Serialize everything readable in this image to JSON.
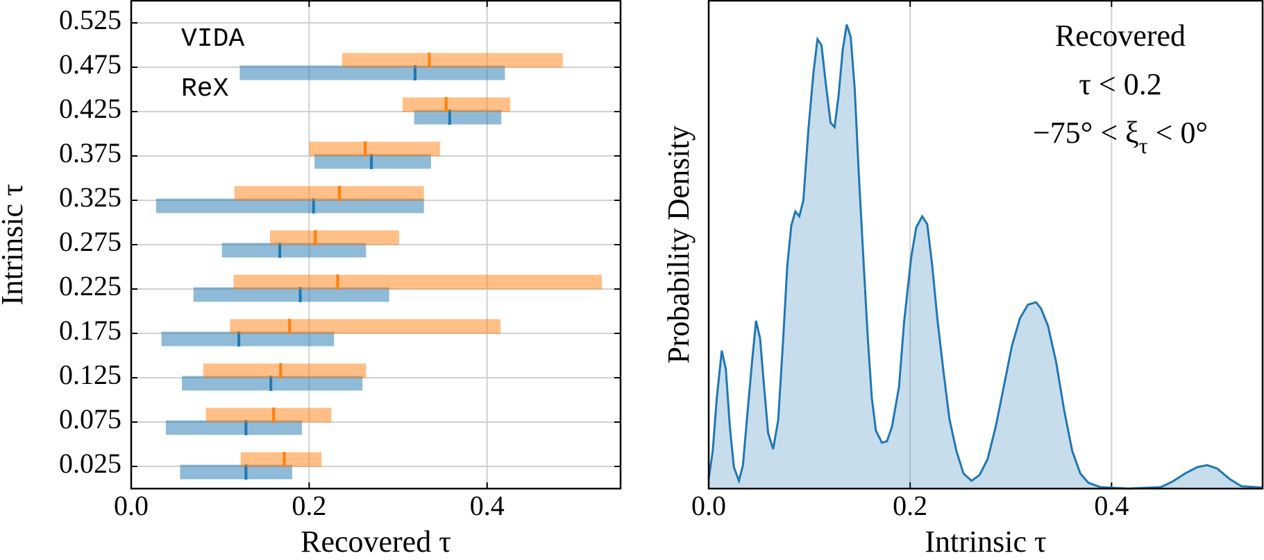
{
  "chart_data": [
    {
      "type": "range",
      "xlabel": "Recovered τ",
      "ylabel": "Intrinsic τ",
      "y": [
        0.025,
        0.075,
        0.125,
        0.175,
        0.225,
        0.275,
        0.325,
        0.375,
        0.425,
        0.475
      ],
      "series": [
        {
          "name": "VIDA",
          "color": "#1f77b4",
          "low": [
            0.055,
            0.039,
            0.057,
            0.034,
            0.07,
            0.102,
            0.028,
            0.206,
            0.318,
            0.122
          ],
          "high": [
            0.181,
            0.192,
            0.26,
            0.228,
            0.29,
            0.264,
            0.329,
            0.337,
            0.416,
            0.42
          ],
          "median": [
            0.129,
            0.129,
            0.157,
            0.121,
            0.19,
            0.167,
            0.205,
            0.27,
            0.358,
            0.319
          ]
        },
        {
          "name": "ReX",
          "color": "#ff7f0e",
          "low": [
            0.123,
            0.084,
            0.081,
            0.111,
            0.115,
            0.156,
            0.116,
            0.2,
            0.305,
            0.237
          ],
          "high": [
            0.214,
            0.225,
            0.264,
            0.415,
            0.529,
            0.301,
            0.329,
            0.347,
            0.426,
            0.485
          ],
          "median": [
            0.172,
            0.16,
            0.168,
            0.178,
            0.232,
            0.207,
            0.234,
            0.263,
            0.354,
            0.335
          ]
        }
      ],
      "xlim": [
        0,
        0.55
      ],
      "xticks": [
        {
          "value": 0,
          "label": "0.0"
        },
        0.2,
        0.4
      ],
      "ylim": [
        0,
        0.55
      ],
      "yticks": [
        0.025,
        0.075,
        0.125,
        0.175,
        0.225,
        0.275,
        0.325,
        0.375,
        0.425,
        0.475,
        0.525
      ],
      "grid": true
    },
    {
      "type": "area",
      "xlabel": "Intrinsic τ",
      "ylabel": "Probability Density",
      "color": "#1f77b4",
      "annotations": [
        [
          "Recovered"
        ],
        [
          "τ < 0.2"
        ],
        [
          "−75° < ξ",
          "τ",
          " < 0°"
        ]
      ],
      "x": [
        0,
        0.004,
        0.008,
        0.013,
        0.017,
        0.021,
        0.025,
        0.03,
        0.034,
        0.038,
        0.043,
        0.047,
        0.051,
        0.055,
        0.059,
        0.064,
        0.069,
        0.074,
        0.078,
        0.082,
        0.086,
        0.09,
        0.094,
        0.099,
        0.104,
        0.108,
        0.112,
        0.116,
        0.121,
        0.125,
        0.129,
        0.133,
        0.137,
        0.141,
        0.145,
        0.149,
        0.154,
        0.158,
        0.162,
        0.166,
        0.172,
        0.177,
        0.182,
        0.189,
        0.194,
        0.201,
        0.206,
        0.212,
        0.217,
        0.222,
        0.227,
        0.233,
        0.239,
        0.246,
        0.253,
        0.261,
        0.269,
        0.277,
        0.285,
        0.293,
        0.301,
        0.309,
        0.317,
        0.325,
        0.33,
        0.337,
        0.345,
        0.353,
        0.361,
        0.369,
        0.377,
        0.389,
        0.417,
        0.449,
        0.461,
        0.473,
        0.485,
        0.495,
        0.505,
        0.517,
        0.529,
        0.55
      ],
      "y": [
        0.02,
        0.077,
        0.185,
        0.283,
        0.245,
        0.127,
        0.044,
        0.016,
        0.048,
        0.143,
        0.259,
        0.344,
        0.308,
        0.209,
        0.114,
        0.081,
        0.14,
        0.308,
        0.456,
        0.539,
        0.568,
        0.558,
        0.591,
        0.736,
        0.852,
        0.921,
        0.909,
        0.835,
        0.75,
        0.741,
        0.806,
        0.898,
        0.951,
        0.926,
        0.819,
        0.646,
        0.456,
        0.308,
        0.185,
        0.119,
        0.094,
        0.097,
        0.127,
        0.209,
        0.341,
        0.473,
        0.535,
        0.558,
        0.542,
        0.456,
        0.349,
        0.242,
        0.143,
        0.077,
        0.031,
        0.016,
        0.028,
        0.061,
        0.127,
        0.209,
        0.292,
        0.349,
        0.377,
        0.382,
        0.369,
        0.333,
        0.259,
        0.16,
        0.077,
        0.031,
        0.012,
        0.003,
        0,
        0.003,
        0.015,
        0.031,
        0.044,
        0.048,
        0.041,
        0.02,
        0.005,
        0.002
      ],
      "xlim": [
        0,
        0.55
      ],
      "xticks": [
        {
          "value": 0,
          "label": "0.0"
        },
        0.2,
        0.4
      ],
      "ylim": [
        0,
        1
      ],
      "grid": true
    }
  ]
}
